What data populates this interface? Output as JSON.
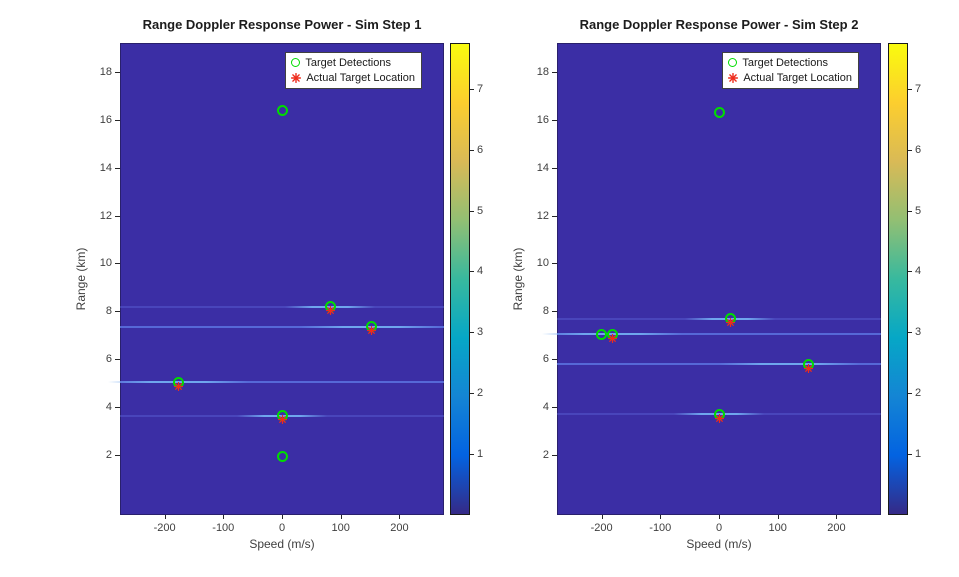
{
  "colors": {
    "figure_background": "#ffffff",
    "plot_background": "#3b2ea5",
    "detection_marker": "#00dd00",
    "actual_target_marker": "#ee2c1c",
    "title_text": "#1c1c1c",
    "tick_text": "#3f3f3f",
    "streak_faint": "rgba(96,106,220,0.40)",
    "streak_bright": "rgba(96,124,232,0.75)",
    "streak_hot": "#6fa6ee",
    "parula": [
      "#352a87",
      "#0363e1",
      "#1485d4",
      "#06a7c6",
      "#38b99e",
      "#92bf73",
      "#d9ba56",
      "#fcce2e",
      "#f9fb0e"
    ]
  },
  "chart_data": [
    {
      "type": "heatmap",
      "title": "Range Doppler Response Power - Sim Step 1",
      "xlabel": "Speed (m/s)",
      "ylabel": "Range (km)",
      "xlim": [
        -276,
        276
      ],
      "ylim": [
        -0.5,
        19.2
      ],
      "xticks": [
        -200,
        -100,
        0,
        100,
        200
      ],
      "yticks": [
        2,
        4,
        6,
        8,
        10,
        12,
        14,
        16,
        18
      ],
      "grid": false,
      "legend_position": "top-right-inside",
      "legend": [
        {
          "marker": "green-circle",
          "label": "Target Detections"
        },
        {
          "marker": "red-asterisk",
          "label": "Actual Target Location"
        }
      ],
      "detections": [
        {
          "speed": 0,
          "range": 16.4,
          "actual": false
        },
        {
          "speed": 82,
          "range": 8.2,
          "actual": true
        },
        {
          "speed": 152,
          "range": 7.35,
          "actual": true
        },
        {
          "speed": -177,
          "range": 5.05,
          "actual": true
        },
        {
          "speed": 0,
          "range": 3.65,
          "actual": true
        },
        {
          "speed": 0,
          "range": 1.95,
          "actual": false
        }
      ],
      "streaks": [
        {
          "range": 8.2,
          "hot_speed": 82,
          "bright": false
        },
        {
          "range": 7.35,
          "hot_speed": 152,
          "bright": true
        },
        {
          "range": 5.05,
          "hot_speed": -177,
          "bright": true
        },
        {
          "range": 3.65,
          "hot_speed": 0,
          "bright": false
        }
      ],
      "colorbar": {
        "vmin": 0,
        "vmax": 7.75,
        "ticks": [
          1,
          2,
          3,
          4,
          5,
          6,
          7
        ]
      }
    },
    {
      "type": "heatmap",
      "title": "Range Doppler Response Power - Sim Step 2",
      "xlabel": "Speed (m/s)",
      "ylabel": "Range (km)",
      "xlim": [
        -276,
        276
      ],
      "ylim": [
        -0.5,
        19.2
      ],
      "xticks": [
        -200,
        -100,
        0,
        100,
        200
      ],
      "yticks": [
        2,
        4,
        6,
        8,
        10,
        12,
        14,
        16,
        18
      ],
      "grid": false,
      "legend_position": "top-right-inside",
      "legend": [
        {
          "marker": "green-circle",
          "label": "Target Detections"
        },
        {
          "marker": "red-asterisk",
          "label": "Actual Target Location"
        }
      ],
      "detections": [
        {
          "speed": 0,
          "range": 16.3,
          "actual": false
        },
        {
          "speed": -200,
          "range": 7.05,
          "actual": false
        },
        {
          "speed": -182,
          "range": 7.05,
          "actual": true
        },
        {
          "speed": 19,
          "range": 7.7,
          "actual": true
        },
        {
          "speed": 152,
          "range": 5.8,
          "actual": true
        },
        {
          "speed": 0,
          "range": 3.7,
          "actual": true
        }
      ],
      "streaks": [
        {
          "range": 7.7,
          "hot_speed": 19,
          "bright": false
        },
        {
          "range": 7.05,
          "hot_speed": -182,
          "bright": true
        },
        {
          "range": 5.8,
          "hot_speed": 120,
          "bright": true
        },
        {
          "range": 3.7,
          "hot_speed": 0,
          "bright": false
        }
      ],
      "colorbar": {
        "vmin": 0,
        "vmax": 7.75,
        "ticks": [
          1,
          2,
          3,
          4,
          5,
          6,
          7
        ]
      }
    }
  ]
}
